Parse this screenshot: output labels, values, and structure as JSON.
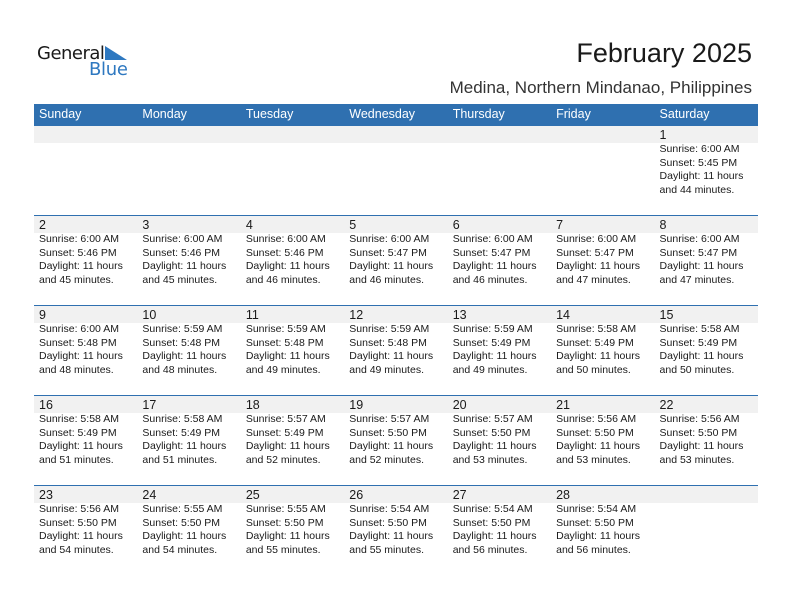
{
  "logo": {
    "general": "General",
    "blue": "Blue"
  },
  "header": {
    "title": "February 2025",
    "location": "Medina, Northern Mindanao, Philippines"
  },
  "colors": {
    "accent": "#2f70b0",
    "date_strip": "#f1f1f1"
  },
  "weekdays": [
    "Sunday",
    "Monday",
    "Tuesday",
    "Wednesday",
    "Thursday",
    "Friday",
    "Saturday"
  ],
  "weeks": [
    [
      null,
      null,
      null,
      null,
      null,
      null,
      {
        "day": "1",
        "sunrise": "Sunrise: 6:00 AM",
        "sunset": "Sunset: 5:45 PM",
        "daylight1": "Daylight: 11 hours",
        "daylight2": "and 44 minutes."
      }
    ],
    [
      {
        "day": "2",
        "sunrise": "Sunrise: 6:00 AM",
        "sunset": "Sunset: 5:46 PM",
        "daylight1": "Daylight: 11 hours",
        "daylight2": "and 45 minutes."
      },
      {
        "day": "3",
        "sunrise": "Sunrise: 6:00 AM",
        "sunset": "Sunset: 5:46 PM",
        "daylight1": "Daylight: 11 hours",
        "daylight2": "and 45 minutes."
      },
      {
        "day": "4",
        "sunrise": "Sunrise: 6:00 AM",
        "sunset": "Sunset: 5:46 PM",
        "daylight1": "Daylight: 11 hours",
        "daylight2": "and 46 minutes."
      },
      {
        "day": "5",
        "sunrise": "Sunrise: 6:00 AM",
        "sunset": "Sunset: 5:47 PM",
        "daylight1": "Daylight: 11 hours",
        "daylight2": "and 46 minutes."
      },
      {
        "day": "6",
        "sunrise": "Sunrise: 6:00 AM",
        "sunset": "Sunset: 5:47 PM",
        "daylight1": "Daylight: 11 hours",
        "daylight2": "and 46 minutes."
      },
      {
        "day": "7",
        "sunrise": "Sunrise: 6:00 AM",
        "sunset": "Sunset: 5:47 PM",
        "daylight1": "Daylight: 11 hours",
        "daylight2": "and 47 minutes."
      },
      {
        "day": "8",
        "sunrise": "Sunrise: 6:00 AM",
        "sunset": "Sunset: 5:47 PM",
        "daylight1": "Daylight: 11 hours",
        "daylight2": "and 47 minutes."
      }
    ],
    [
      {
        "day": "9",
        "sunrise": "Sunrise: 6:00 AM",
        "sunset": "Sunset: 5:48 PM",
        "daylight1": "Daylight: 11 hours",
        "daylight2": "and 48 minutes."
      },
      {
        "day": "10",
        "sunrise": "Sunrise: 5:59 AM",
        "sunset": "Sunset: 5:48 PM",
        "daylight1": "Daylight: 11 hours",
        "daylight2": "and 48 minutes."
      },
      {
        "day": "11",
        "sunrise": "Sunrise: 5:59 AM",
        "sunset": "Sunset: 5:48 PM",
        "daylight1": "Daylight: 11 hours",
        "daylight2": "and 49 minutes."
      },
      {
        "day": "12",
        "sunrise": "Sunrise: 5:59 AM",
        "sunset": "Sunset: 5:48 PM",
        "daylight1": "Daylight: 11 hours",
        "daylight2": "and 49 minutes."
      },
      {
        "day": "13",
        "sunrise": "Sunrise: 5:59 AM",
        "sunset": "Sunset: 5:49 PM",
        "daylight1": "Daylight: 11 hours",
        "daylight2": "and 49 minutes."
      },
      {
        "day": "14",
        "sunrise": "Sunrise: 5:58 AM",
        "sunset": "Sunset: 5:49 PM",
        "daylight1": "Daylight: 11 hours",
        "daylight2": "and 50 minutes."
      },
      {
        "day": "15",
        "sunrise": "Sunrise: 5:58 AM",
        "sunset": "Sunset: 5:49 PM",
        "daylight1": "Daylight: 11 hours",
        "daylight2": "and 50 minutes."
      }
    ],
    [
      {
        "day": "16",
        "sunrise": "Sunrise: 5:58 AM",
        "sunset": "Sunset: 5:49 PM",
        "daylight1": "Daylight: 11 hours",
        "daylight2": "and 51 minutes."
      },
      {
        "day": "17",
        "sunrise": "Sunrise: 5:58 AM",
        "sunset": "Sunset: 5:49 PM",
        "daylight1": "Daylight: 11 hours",
        "daylight2": "and 51 minutes."
      },
      {
        "day": "18",
        "sunrise": "Sunrise: 5:57 AM",
        "sunset": "Sunset: 5:49 PM",
        "daylight1": "Daylight: 11 hours",
        "daylight2": "and 52 minutes."
      },
      {
        "day": "19",
        "sunrise": "Sunrise: 5:57 AM",
        "sunset": "Sunset: 5:50 PM",
        "daylight1": "Daylight: 11 hours",
        "daylight2": "and 52 minutes."
      },
      {
        "day": "20",
        "sunrise": "Sunrise: 5:57 AM",
        "sunset": "Sunset: 5:50 PM",
        "daylight1": "Daylight: 11 hours",
        "daylight2": "and 53 minutes."
      },
      {
        "day": "21",
        "sunrise": "Sunrise: 5:56 AM",
        "sunset": "Sunset: 5:50 PM",
        "daylight1": "Daylight: 11 hours",
        "daylight2": "and 53 minutes."
      },
      {
        "day": "22",
        "sunrise": "Sunrise: 5:56 AM",
        "sunset": "Sunset: 5:50 PM",
        "daylight1": "Daylight: 11 hours",
        "daylight2": "and 53 minutes."
      }
    ],
    [
      {
        "day": "23",
        "sunrise": "Sunrise: 5:56 AM",
        "sunset": "Sunset: 5:50 PM",
        "daylight1": "Daylight: 11 hours",
        "daylight2": "and 54 minutes."
      },
      {
        "day": "24",
        "sunrise": "Sunrise: 5:55 AM",
        "sunset": "Sunset: 5:50 PM",
        "daylight1": "Daylight: 11 hours",
        "daylight2": "and 54 minutes."
      },
      {
        "day": "25",
        "sunrise": "Sunrise: 5:55 AM",
        "sunset": "Sunset: 5:50 PM",
        "daylight1": "Daylight: 11 hours",
        "daylight2": "and 55 minutes."
      },
      {
        "day": "26",
        "sunrise": "Sunrise: 5:54 AM",
        "sunset": "Sunset: 5:50 PM",
        "daylight1": "Daylight: 11 hours",
        "daylight2": "and 55 minutes."
      },
      {
        "day": "27",
        "sunrise": "Sunrise: 5:54 AM",
        "sunset": "Sunset: 5:50 PM",
        "daylight1": "Daylight: 11 hours",
        "daylight2": "and 56 minutes."
      },
      {
        "day": "28",
        "sunrise": "Sunrise: 5:54 AM",
        "sunset": "Sunset: 5:50 PM",
        "daylight1": "Daylight: 11 hours",
        "daylight2": "and 56 minutes."
      },
      null
    ]
  ]
}
